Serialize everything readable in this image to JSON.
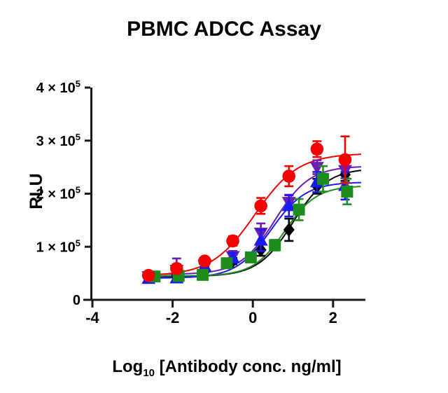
{
  "page": {
    "background": "#ffffff"
  },
  "chart_data": {
    "type": "scatter",
    "title": "PBMC ADCC Assay",
    "ylabel": "RLU",
    "xlabel": {
      "prefix": "Log",
      "sub": "10",
      "rest": " [Antibody conc. ng/ml]"
    },
    "xlim": [
      -4,
      2.8
    ],
    "ylim": [
      0,
      400000
    ],
    "grid": false,
    "legend": "none",
    "axis_color": "#1a1a1a",
    "xticks": [
      {
        "v": -4,
        "label": "-4"
      },
      {
        "v": -2,
        "label": "-2"
      },
      {
        "v": 0,
        "label": "0"
      },
      {
        "v": 2,
        "label": "2"
      }
    ],
    "yticks": [
      {
        "v": 0,
        "mant": "0",
        "exp": ""
      },
      {
        "v": 100000,
        "mant": "1 × 10",
        "exp": "5"
      },
      {
        "v": 200000,
        "mant": "2 × 10",
        "exp": "5"
      },
      {
        "v": 300000,
        "mant": "3 × 10",
        "exp": "5"
      },
      {
        "v": 400000,
        "mant": "4 × 10",
        "exp": "5"
      }
    ],
    "series": [
      {
        "name": "black-diamonds",
        "marker": "diamond",
        "color": "#000000",
        "x": [
          -2.6,
          -1.9,
          -1.2,
          -0.5,
          0.2,
          0.9,
          1.6,
          2.3
        ],
        "y": [
          43000,
          46000,
          57000,
          73000,
          94000,
          132000,
          214000,
          236000
        ],
        "err": [
          3000,
          4000,
          5000,
          6000,
          11000,
          21000,
          14000,
          12000
        ],
        "fit": {
          "bottom": 44000,
          "top": 248000,
          "logec50": 1.0,
          "hill": 1.0
        },
        "curve_end": 2.72
      },
      {
        "name": "purple-triangles-down",
        "marker": "triangle-down",
        "color": "#6c1db4",
        "x": [
          -2.6,
          -1.9,
          -1.2,
          -0.5,
          0.2,
          0.9,
          1.6,
          2.3
        ],
        "y": [
          44000,
          56000,
          66000,
          82000,
          126000,
          184000,
          250000,
          244000
        ],
        "err": [
          4000,
          22000,
          9000,
          10000,
          18000,
          14000,
          13000,
          15000
        ],
        "fit": {
          "bottom": 48000,
          "top": 252000,
          "logec50": 0.55,
          "hill": 1.0
        },
        "curve_end": 2.72
      },
      {
        "name": "blue-triangles-up",
        "marker": "triangle-up",
        "color": "#1a1af0",
        "x": [
          -2.6,
          -1.9,
          -1.2,
          -0.5,
          0.2,
          0.9,
          1.6,
          2.3
        ],
        "y": [
          40000,
          41000,
          63000,
          79000,
          112000,
          177000,
          222000,
          215000
        ],
        "err": [
          4000,
          5000,
          7000,
          9000,
          20000,
          20000,
          19000,
          26000
        ],
        "fit": {
          "bottom": 41000,
          "top": 222000,
          "logec50": 0.45,
          "hill": 1.0
        },
        "curve_end": 2.72
      },
      {
        "name": "green-squares",
        "marker": "square",
        "color": "#1e8c1e",
        "x": [
          -2.45,
          -1.85,
          -1.25,
          -0.65,
          -0.05,
          0.55,
          1.15,
          1.75,
          2.35
        ],
        "y": [
          44000,
          45000,
          47000,
          69000,
          80000,
          103000,
          170000,
          228000,
          204000
        ],
        "err": [
          3000,
          4000,
          5000,
          7000,
          8000,
          10000,
          20000,
          24000,
          24000
        ],
        "fit": {
          "bottom": 45000,
          "top": 215000,
          "logec50": 0.8,
          "hill": 1.1
        },
        "curve_end": 2.72
      },
      {
        "name": "red-circles",
        "marker": "circle",
        "color": "#f40000",
        "x": [
          -2.6,
          -1.9,
          -1.2,
          -0.5,
          0.2,
          0.9,
          1.6,
          2.3
        ],
        "y": [
          46000,
          59000,
          73000,
          111000,
          177000,
          233000,
          284000,
          264000
        ],
        "err": [
          4000,
          8000,
          7000,
          9000,
          15000,
          19000,
          15000,
          44000
        ],
        "fit": {
          "bottom": 45000,
          "top": 276000,
          "logec50": 0.05,
          "hill": 0.8
        },
        "curve_end": 2.72
      }
    ]
  }
}
